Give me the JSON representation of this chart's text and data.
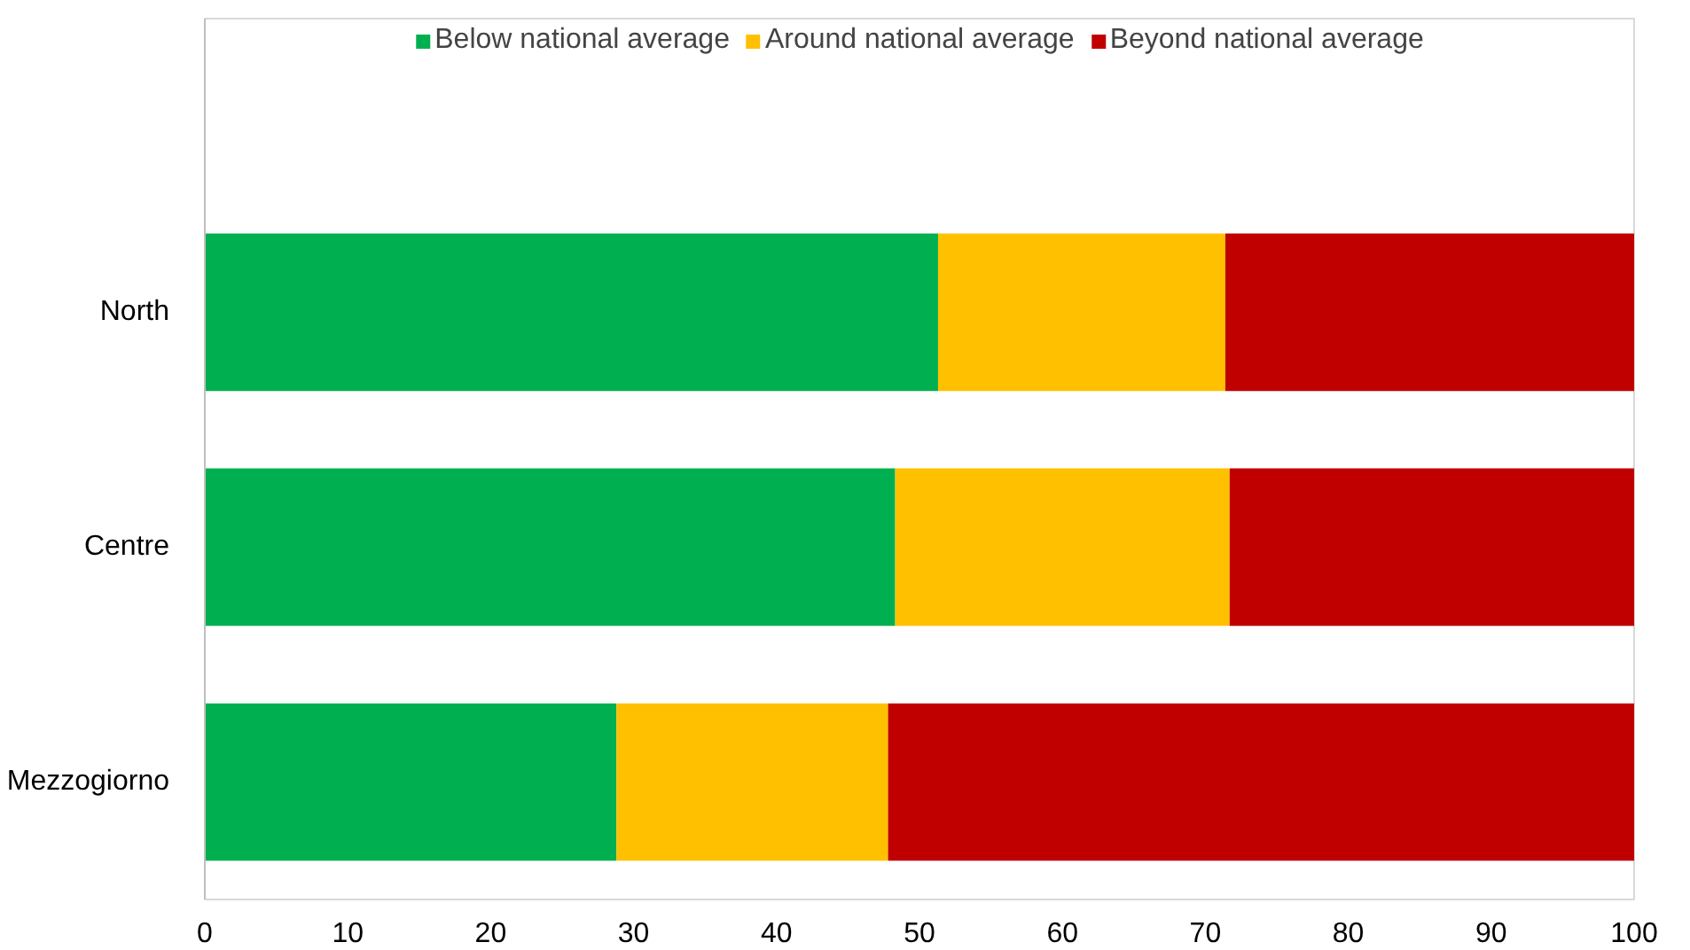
{
  "chart_data": {
    "type": "bar",
    "orientation": "horizontal",
    "stacked": true,
    "categories": [
      "North",
      "Centre",
      "Mezzogiorno"
    ],
    "series": [
      {
        "name": "Below national average",
        "color": "#00b050",
        "values": [
          51.3,
          48.3,
          28.8
        ]
      },
      {
        "name": "Around national average",
        "color": "#ffc000",
        "values": [
          20.1,
          23.4,
          19.0
        ]
      },
      {
        "name": "Beyond national average",
        "color": "#c00000",
        "values": [
          28.6,
          28.3,
          52.2
        ]
      }
    ],
    "xlim": [
      0,
      100
    ],
    "xticks": [
      0,
      10,
      20,
      30,
      40,
      50,
      60,
      70,
      80,
      90,
      100
    ],
    "grid": false,
    "legend": "top"
  }
}
